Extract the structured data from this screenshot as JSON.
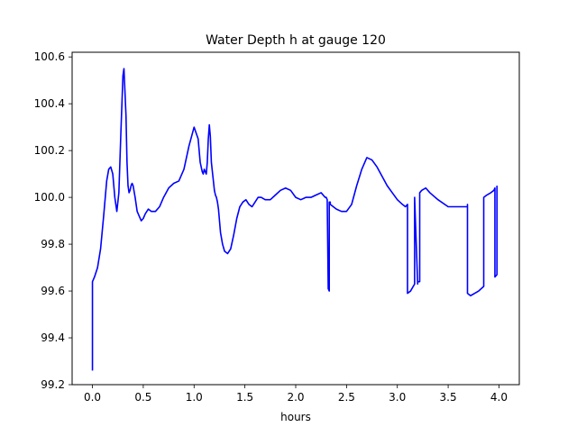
{
  "chart_data": {
    "type": "line",
    "title": "Water Depth h at gauge 120",
    "xlabel": "hours",
    "ylabel": "",
    "xlim": [
      -0.2,
      4.2
    ],
    "ylim": [
      99.2,
      100.62
    ],
    "xticks": [
      0.0,
      0.5,
      1.0,
      1.5,
      2.0,
      2.5,
      3.0,
      3.5,
      4.0
    ],
    "xtick_labels": [
      "0.0",
      "0.5",
      "1.0",
      "1.5",
      "2.0",
      "2.5",
      "3.0",
      "3.5",
      "4.0"
    ],
    "yticks": [
      99.2,
      99.4,
      99.6,
      99.8,
      100.0,
      100.2,
      100.4,
      100.6
    ],
    "ytick_labels": [
      "99.2",
      "99.4",
      "99.6",
      "99.8",
      "100.0",
      "100.2",
      "100.4",
      "100.6"
    ],
    "grid": false,
    "legend": false,
    "line_color": "#0000ff",
    "series": [
      {
        "x": [
          0.0,
          0.0,
          0.02,
          0.05,
          0.08,
          0.11,
          0.14,
          0.16,
          0.18,
          0.2,
          0.22,
          0.24,
          0.26,
          0.28,
          0.3,
          0.31,
          0.33,
          0.34,
          0.35,
          0.36,
          0.37,
          0.38,
          0.39,
          0.4,
          0.42,
          0.44,
          0.46,
          0.48,
          0.5,
          0.52,
          0.55,
          0.58,
          0.62,
          0.66,
          0.7,
          0.75,
          0.8,
          0.85,
          0.9,
          0.95,
          1.0,
          1.04,
          1.06,
          1.08,
          1.09,
          1.1,
          1.11,
          1.12,
          1.13,
          1.14,
          1.15,
          1.16,
          1.17,
          1.18,
          1.19,
          1.2,
          1.21,
          1.22,
          1.23,
          1.24,
          1.26,
          1.28,
          1.3,
          1.33,
          1.36,
          1.39,
          1.42,
          1.45,
          1.48,
          1.51,
          1.54,
          1.57,
          1.6,
          1.63,
          1.66,
          1.7,
          1.75,
          1.8,
          1.85,
          1.9,
          1.95,
          2.0,
          2.05,
          2.1,
          2.15,
          2.2,
          2.25,
          2.29,
          2.3,
          2.31,
          2.32,
          2.33,
          2.33,
          2.34,
          2.34,
          2.4,
          2.45,
          2.5,
          2.55,
          2.6,
          2.65,
          2.7,
          2.75,
          2.8,
          2.85,
          2.9,
          2.95,
          3.0,
          3.05,
          3.08,
          3.1,
          3.1,
          3.1,
          3.13,
          3.17,
          3.17,
          3.17,
          3.2,
          3.2,
          3.22,
          3.22,
          3.24,
          3.28,
          3.32,
          3.4,
          3.5,
          3.6,
          3.69,
          3.69,
          3.69,
          3.72,
          3.76,
          3.8,
          3.85,
          3.85,
          3.88,
          3.92,
          3.95,
          3.96,
          3.96,
          3.98,
          3.98
        ],
        "y": [
          99.26,
          99.64,
          99.66,
          99.7,
          99.78,
          99.92,
          100.07,
          100.12,
          100.13,
          100.1,
          100.0,
          99.94,
          100.02,
          100.28,
          100.52,
          100.55,
          100.35,
          100.15,
          100.05,
          100.02,
          100.03,
          100.05,
          100.06,
          100.05,
          100.0,
          99.94,
          99.92,
          99.9,
          99.91,
          99.93,
          99.95,
          99.94,
          99.94,
          99.96,
          100.0,
          100.04,
          100.06,
          100.07,
          100.12,
          100.22,
          100.3,
          100.25,
          100.15,
          100.11,
          100.1,
          100.12,
          100.11,
          100.1,
          100.15,
          100.25,
          100.31,
          100.26,
          100.15,
          100.11,
          100.07,
          100.03,
          100.01,
          100.0,
          99.98,
          99.95,
          99.85,
          99.8,
          99.77,
          99.76,
          99.78,
          99.84,
          99.91,
          99.96,
          99.98,
          99.99,
          99.97,
          99.96,
          99.98,
          100.0,
          100.0,
          99.99,
          99.99,
          100.01,
          100.03,
          100.04,
          100.03,
          100.0,
          99.99,
          100.0,
          100.0,
          100.01,
          100.02,
          100.0,
          100.0,
          99.99,
          99.61,
          99.6,
          99.98,
          99.98,
          99.97,
          99.95,
          99.94,
          99.94,
          99.97,
          100.05,
          100.12,
          100.17,
          100.16,
          100.13,
          100.09,
          100.05,
          100.02,
          99.99,
          99.97,
          99.96,
          99.97,
          99.97,
          99.59,
          99.6,
          99.63,
          99.64,
          100.0,
          99.63,
          99.64,
          99.64,
          100.02,
          100.03,
          100.04,
          100.02,
          99.99,
          99.96,
          99.96,
          99.96,
          99.97,
          99.59,
          99.58,
          99.59,
          99.6,
          99.62,
          100.0,
          100.01,
          100.02,
          100.03,
          100.04,
          99.66,
          99.67,
          100.05
        ]
      }
    ]
  }
}
